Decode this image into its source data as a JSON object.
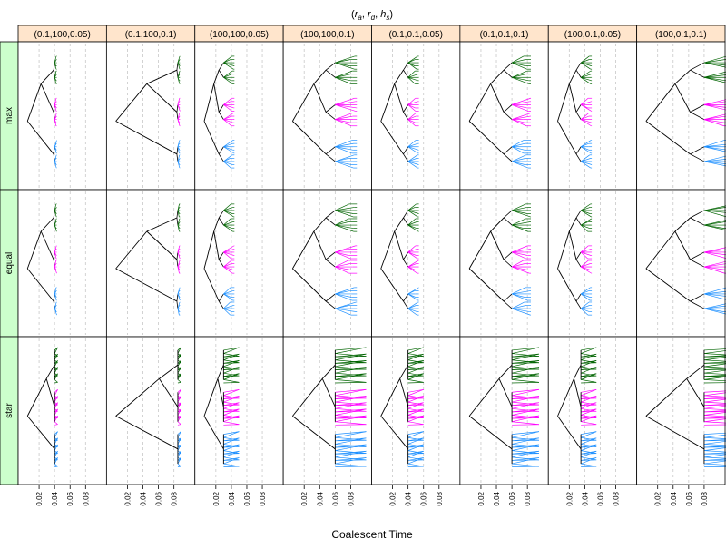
{
  "chart_data": {
    "type": "tree",
    "title_parts": {
      "r_a": "r",
      "r_a_sub": "a",
      "r_d": "r",
      "r_d_sub": "d",
      "h_s": "h",
      "h_s_sub": "s"
    },
    "xlabel": "Coalescent Time",
    "x_ticks": [
      "0.02",
      "0.04",
      "0.06",
      "0.08"
    ],
    "xlim": [
      0,
      0.1
    ],
    "columns": [
      "(0.1,100,0.05)",
      "(0.1,100,0.1)",
      "(100,100,0.05)",
      "(100,100,0.1)",
      "(0.1,0.1,0.05)",
      "(0.1,0.1,0.1)",
      "(100,0.1,0.05)",
      "(100,0.1,0.1)"
    ],
    "rows": [
      "max",
      "equal",
      "star"
    ],
    "colors": {
      "strip_col": "#ffe5cc",
      "strip_row": "#ccffcc",
      "gridline": "#c8c8c8",
      "tree": "#000000",
      "group_green": "#006400",
      "group_magenta": "#ff00ff",
      "group_blue": "#1e90ff"
    },
    "series": [
      {
        "color": "#006400"
      },
      {
        "color": "#ff00ff"
      },
      {
        "color": "#1e90ff"
      }
    ],
    "root_time_by_column": [
      0.005,
      0.005,
      0.005,
      0.005,
      0.005,
      0.005,
      0.005,
      0.005
    ],
    "tip_time_by_column": [
      0.04,
      0.085,
      0.03,
      0.06,
      0.04,
      0.06,
      0.035,
      0.08
    ],
    "cluster_width_by_column": [
      0.004,
      0.004,
      0.02,
      0.04,
      0.02,
      0.035,
      0.02,
      0.06
    ]
  }
}
